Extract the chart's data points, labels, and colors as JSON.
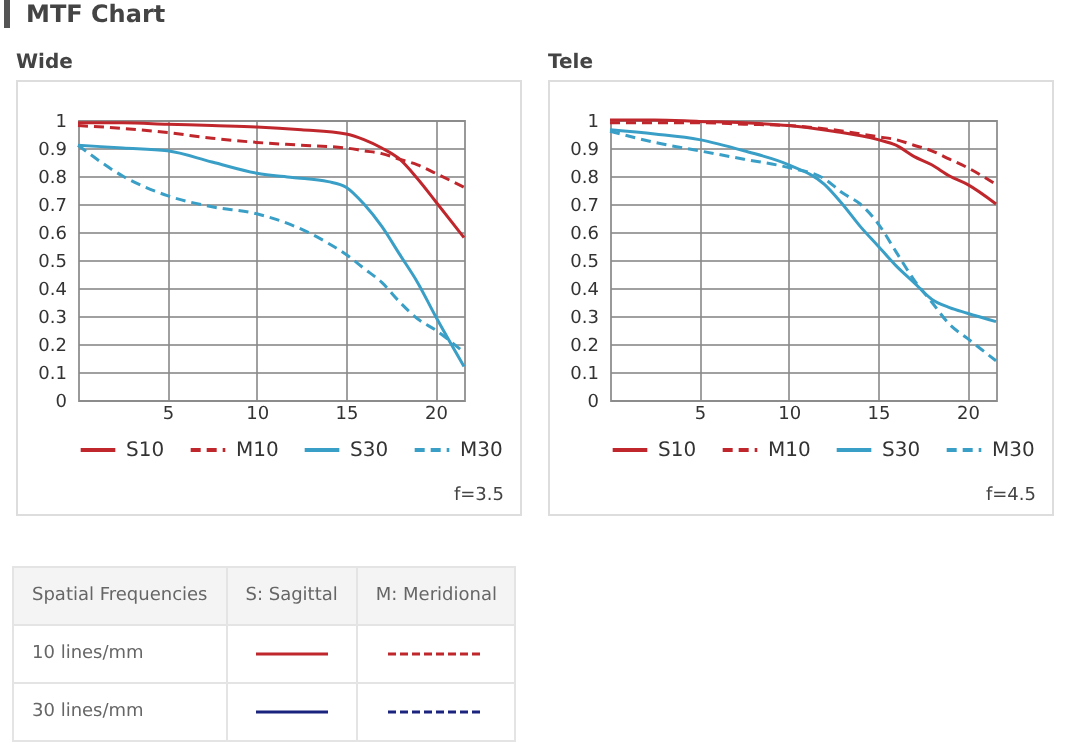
{
  "chart_data": [
    {
      "type": "line",
      "title": "MTF Chart",
      "subtitle": "Wide",
      "xlim": [
        0,
        21.6
      ],
      "xticks": [
        5,
        10,
        15,
        20
      ],
      "ylim": [
        0,
        1
      ],
      "yticks": [
        0,
        0.1,
        0.2,
        0.3,
        0.4,
        0.5,
        0.6,
        0.7,
        0.8,
        0.9,
        1
      ],
      "grid": true,
      "legend": "bottom",
      "annotations": [
        "f=3.5"
      ],
      "series": [
        {
          "name": "S10",
          "color": "#c0272d",
          "line_style": "solid",
          "x": [
            0,
            2.5,
            5,
            7.5,
            10,
            12.5,
            15,
            16,
            17,
            18,
            19,
            20,
            21.6
          ],
          "values": [
            0.99,
            0.99,
            0.985,
            0.98,
            0.975,
            0.965,
            0.95,
            0.93,
            0.9,
            0.86,
            0.79,
            0.71,
            0.58
          ]
        },
        {
          "name": "M10",
          "color": "#c0272d",
          "line_style": "dashed",
          "x": [
            0,
            2.5,
            5,
            7.5,
            10,
            12.5,
            15,
            16,
            17,
            18,
            19,
            20,
            21.6
          ],
          "values": [
            0.98,
            0.97,
            0.955,
            0.935,
            0.92,
            0.91,
            0.9,
            0.89,
            0.88,
            0.86,
            0.84,
            0.81,
            0.76
          ]
        },
        {
          "name": "S30",
          "color": "#3a9fc6",
          "line_style": "solid",
          "x": [
            0,
            2.5,
            5,
            7.5,
            10,
            12,
            14,
            15,
            16,
            17,
            18,
            19,
            20,
            21.6
          ],
          "values": [
            0.91,
            0.9,
            0.89,
            0.85,
            0.81,
            0.795,
            0.78,
            0.76,
            0.7,
            0.62,
            0.52,
            0.42,
            0.3,
            0.12
          ]
        },
        {
          "name": "M30",
          "color": "#3a9fc6",
          "line_style": "dashed",
          "x": [
            0,
            2.5,
            5,
            7.5,
            10,
            12.5,
            14,
            15,
            16,
            17,
            18,
            19,
            20,
            21.6
          ],
          "values": [
            0.91,
            0.8,
            0.73,
            0.69,
            0.665,
            0.61,
            0.56,
            0.52,
            0.47,
            0.42,
            0.35,
            0.29,
            0.25,
            0.17
          ]
        }
      ]
    },
    {
      "type": "line",
      "title": "Tele",
      "xlim": [
        0,
        21.6
      ],
      "xticks": [
        5,
        10,
        15,
        20
      ],
      "ylim": [
        0,
        1
      ],
      "yticks": [
        0,
        0.1,
        0.2,
        0.3,
        0.4,
        0.5,
        0.6,
        0.7,
        0.8,
        0.9,
        1
      ],
      "grid": true,
      "legend": "bottom",
      "annotations": [
        "f=4.5"
      ],
      "series": [
        {
          "name": "S10",
          "color": "#c0272d",
          "line_style": "solid",
          "x": [
            0,
            2.5,
            5,
            7.5,
            10,
            12.5,
            15,
            16,
            17,
            18,
            19,
            20,
            21.6
          ],
          "values": [
            1,
            1,
            0.995,
            0.99,
            0.98,
            0.96,
            0.93,
            0.91,
            0.87,
            0.84,
            0.8,
            0.77,
            0.7
          ]
        },
        {
          "name": "M10",
          "color": "#c0272d",
          "line_style": "dashed",
          "x": [
            0,
            2.5,
            5,
            7.5,
            10,
            12.5,
            15,
            16,
            17,
            18,
            19,
            20,
            21.6
          ],
          "values": [
            0.99,
            0.99,
            0.99,
            0.985,
            0.98,
            0.965,
            0.94,
            0.93,
            0.91,
            0.89,
            0.86,
            0.83,
            0.77
          ]
        },
        {
          "name": "S30",
          "color": "#3a9fc6",
          "line_style": "solid",
          "x": [
            0,
            2.5,
            5,
            7.5,
            10,
            12,
            13,
            14,
            15,
            16,
            17,
            18,
            19,
            20,
            21.6
          ],
          "values": [
            0.965,
            0.95,
            0.93,
            0.89,
            0.84,
            0.77,
            0.7,
            0.62,
            0.55,
            0.48,
            0.42,
            0.36,
            0.33,
            0.31,
            0.28
          ]
        },
        {
          "name": "M30",
          "color": "#3a9fc6",
          "line_style": "dashed",
          "x": [
            0,
            2.5,
            5,
            7.5,
            10,
            12,
            13,
            14,
            15,
            16,
            17,
            18,
            19,
            20,
            21.6
          ],
          "values": [
            0.96,
            0.92,
            0.89,
            0.86,
            0.83,
            0.79,
            0.74,
            0.7,
            0.63,
            0.53,
            0.43,
            0.35,
            0.27,
            0.22,
            0.14
          ]
        }
      ]
    },
    {
      "type": "other",
      "annotations": [
        "Spatial Frequencies",
        "S: Sagittal",
        "M: Meridional",
        "10 lines/mm",
        "30 lines/mm"
      ]
    }
  ]
}
